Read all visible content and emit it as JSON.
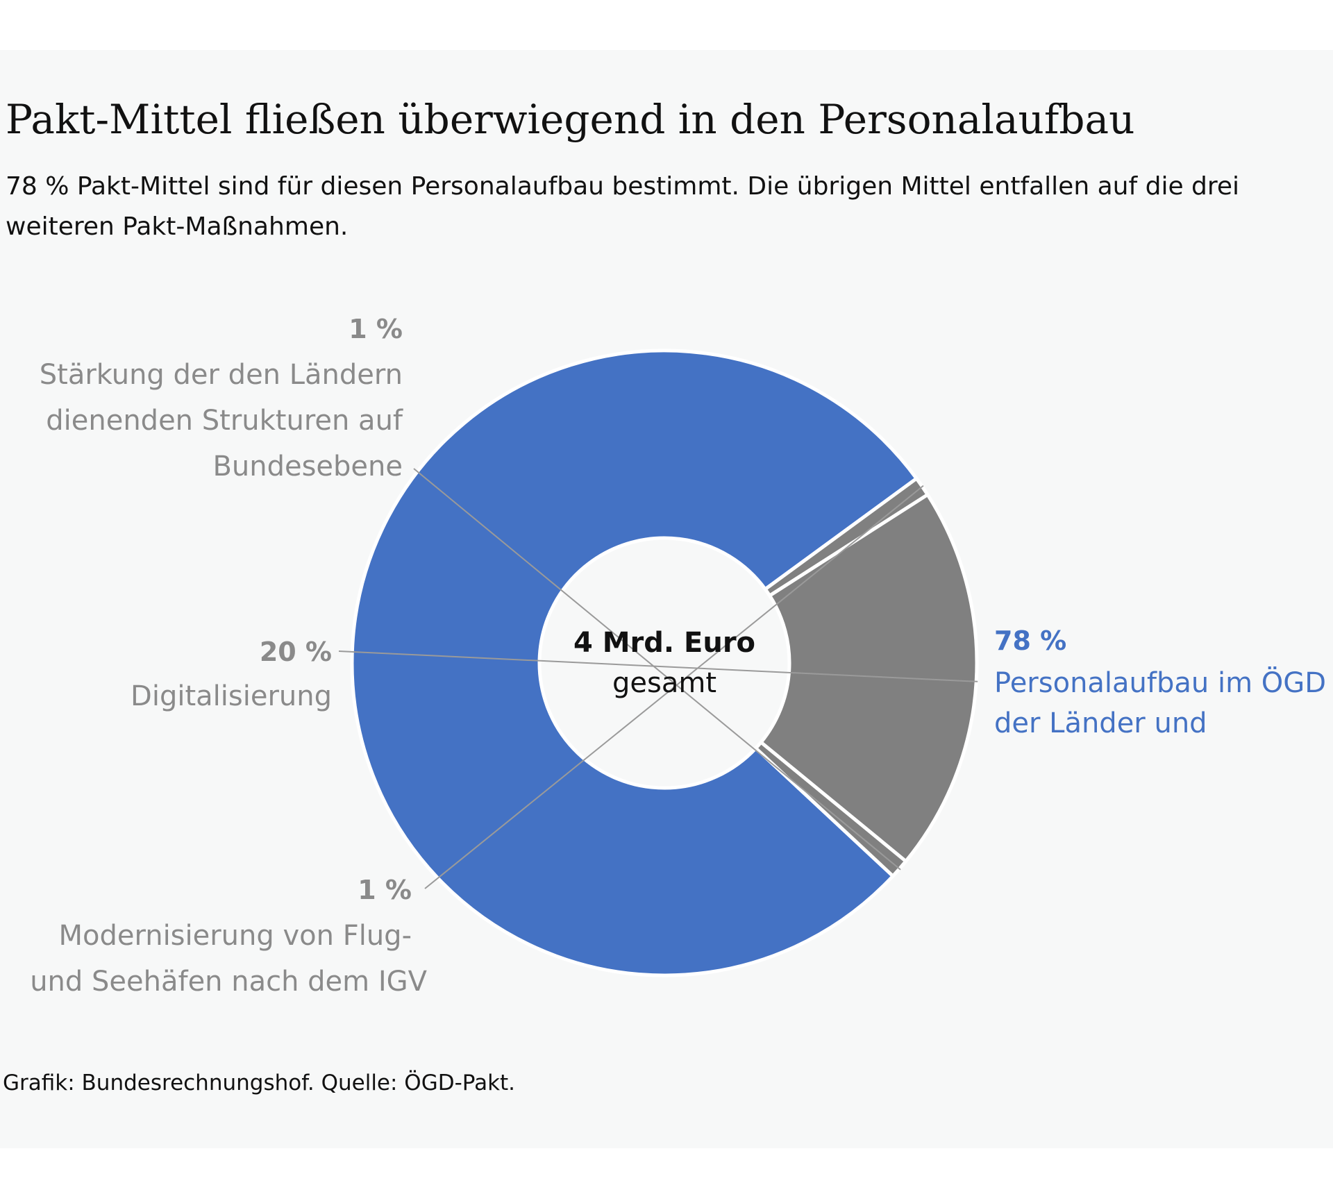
{
  "header": {
    "title": "Pakt-Mittel fließen überwiegend in den Personalaufbau",
    "subtitle": "78 % Pakt-Mittel sind für diesen Personalaufbau bestimmt. Die übrigen Mittel entfallen auf die drei weiteren Pakt-Maßnahmen."
  },
  "chart_data": {
    "type": "pie",
    "style": "donut",
    "center_label": {
      "line1": "4 Mrd. Euro",
      "line2": "gesamt"
    },
    "slices": [
      {
        "id": "personal",
        "pct_label": "78 %",
        "value": 78,
        "label_lines": [
          "Personalaufbau im ÖGD",
          "der Länder und"
        ],
        "color": "#4472c4"
      },
      {
        "id": "flughafen",
        "pct_label": "1 %",
        "value": 1,
        "label_lines": [
          "Modernisierung von Flug-",
          "und Seehäfen nach dem IGV"
        ],
        "color": "#808080"
      },
      {
        "id": "digital",
        "pct_label": "20 %",
        "value": 20,
        "label_lines": [
          "Digitalisierung"
        ],
        "color": "#808080"
      },
      {
        "id": "bund",
        "pct_label": "1 %",
        "value": 1,
        "label_lines": [
          "Stärkung der den Ländern",
          "dienenden Strukturen auf",
          "Bundesebene"
        ],
        "color": "#808080"
      }
    ],
    "legend": "none"
  },
  "footer": {
    "source": "Grafik: Bundesrechnungshof. Quelle: ÖGD-Pakt."
  }
}
